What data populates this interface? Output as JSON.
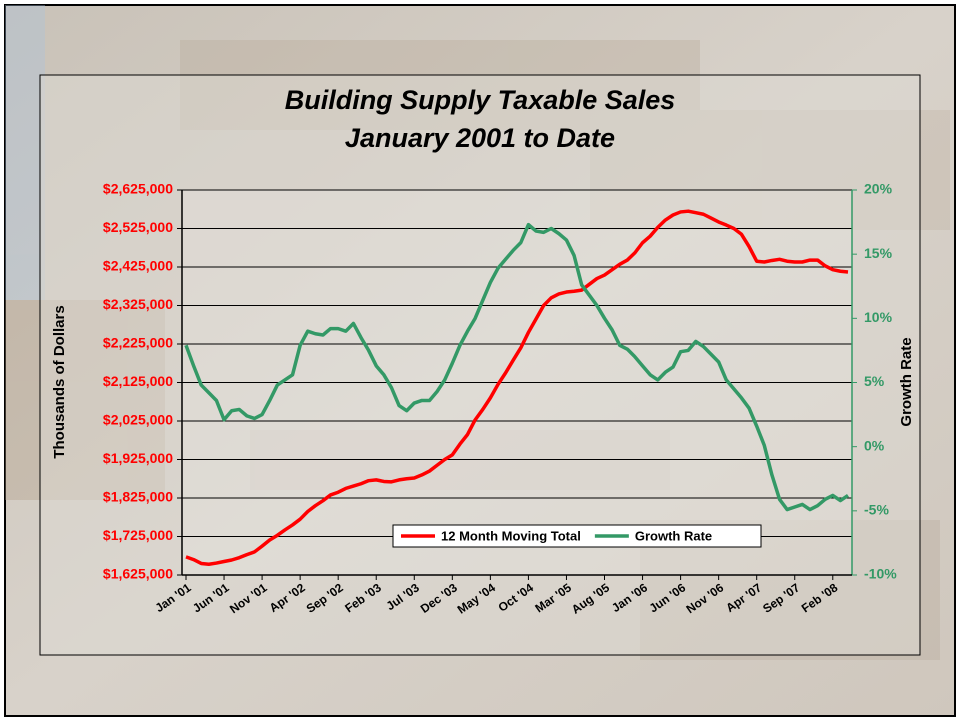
{
  "chart_data": {
    "type": "line",
    "title": [
      "Building Supply Taxable Sales",
      "January 2001 to Date"
    ],
    "ylabel": "Thousands of Dollars",
    "y2label": "Growth Rate",
    "legend": "lower center",
    "grid": true,
    "categories": [
      "Jan '01",
      null,
      null,
      null,
      null,
      "Jun '01",
      null,
      null,
      null,
      null,
      "Nov '01",
      null,
      null,
      null,
      null,
      "Apr '02",
      null,
      null,
      null,
      null,
      "Sep '02",
      null,
      null,
      null,
      null,
      "Feb '03",
      null,
      null,
      null,
      null,
      "Jul '03",
      null,
      null,
      null,
      null,
      "Dec '03",
      null,
      null,
      null,
      null,
      "May '04",
      null,
      null,
      null,
      null,
      "Oct '04",
      null,
      null,
      null,
      null,
      "Mar '05",
      null,
      null,
      null,
      null,
      "Aug '05",
      null,
      null,
      null,
      null,
      "Jan '06",
      null,
      null,
      null,
      null,
      "Jun '06",
      null,
      null,
      null,
      null,
      "Nov '06",
      null,
      null,
      null,
      null,
      "Apr '07",
      null,
      null,
      null,
      null,
      "Sep '07",
      null,
      null,
      null,
      null,
      "Feb '08",
      null,
      null
    ],
    "ylim": [
      1625000,
      2625000
    ],
    "yticks": [
      {
        "value": 1625000,
        "label": "$1,625,000"
      },
      {
        "value": 1725000,
        "label": "$1,725,000"
      },
      {
        "value": 1825000,
        "label": "$1,825,000"
      },
      {
        "value": 1925000,
        "label": "$1,925,000"
      },
      {
        "value": 2025000,
        "label": "$2,025,000"
      },
      {
        "value": 2125000,
        "label": "$2,125,000"
      },
      {
        "value": 2225000,
        "label": "$2,225,000"
      },
      {
        "value": 2325000,
        "label": "$2,325,000"
      },
      {
        "value": 2425000,
        "label": "$2,425,000"
      },
      {
        "value": 2525000,
        "label": "$2,525,000"
      },
      {
        "value": 2625000,
        "label": "$2,625,000"
      }
    ],
    "y2lim": [
      -10,
      20
    ],
    "y2ticks": [
      {
        "value": -10,
        "label": "-10%"
      },
      {
        "value": -5,
        "label": "-5%"
      },
      {
        "value": 0,
        "label": "0%"
      },
      {
        "value": 5,
        "label": "5%"
      },
      {
        "value": 10,
        "label": "10%"
      },
      {
        "value": 15,
        "label": "15%"
      },
      {
        "value": 20,
        "label": "20%"
      }
    ],
    "series": [
      {
        "name": "12 Month Moving Total",
        "color": "#ff0000",
        "values": [
          1672000,
          1665000,
          1655000,
          1653000,
          1656000,
          1660000,
          1664000,
          1670000,
          1678000,
          1685000,
          1700000,
          1716000,
          1728000,
          1742000,
          1755000,
          1770000,
          1790000,
          1805000,
          1818000,
          1833000,
          1840000,
          1850000,
          1856000,
          1862000,
          1870000,
          1872000,
          1868000,
          1867000,
          1872000,
          1875000,
          1877000,
          1885000,
          1895000,
          1910000,
          1925000,
          1937000,
          1965000,
          1990000,
          2028000,
          2055000,
          2085000,
          2120000,
          2150000,
          2183000,
          2215000,
          2255000,
          2290000,
          2325000,
          2345000,
          2355000,
          2360000,
          2362000,
          2365000,
          2380000,
          2395000,
          2404000,
          2418000,
          2432000,
          2443000,
          2462000,
          2488000,
          2505000,
          2528000,
          2547000,
          2560000,
          2568000,
          2570000,
          2566000,
          2562000,
          2552000,
          2542000,
          2534000,
          2525000,
          2510000,
          2478000,
          2440000,
          2438000,
          2442000,
          2445000,
          2440000,
          2438000,
          2438000,
          2443000,
          2443000,
          2428000,
          2418000,
          2414000,
          2412000
        ]
      },
      {
        "name": "Growth Rate",
        "color": "#339966",
        "axis": "y2",
        "values": [
          7.9,
          6.3,
          4.8,
          4.2,
          3.6,
          2.1,
          2.8,
          2.9,
          2.4,
          2.2,
          2.5,
          3.6,
          4.8,
          5.2,
          5.6,
          7.9,
          9.0,
          8.8,
          8.7,
          9.2,
          9.2,
          9.0,
          9.6,
          8.5,
          7.5,
          6.3,
          5.6,
          4.6,
          3.2,
          2.8,
          3.4,
          3.6,
          3.6,
          4.3,
          5.2,
          6.5,
          7.9,
          9.0,
          10.0,
          11.4,
          12.8,
          13.9,
          14.6,
          15.3,
          15.9,
          17.3,
          16.8,
          16.7,
          17.0,
          16.6,
          16.1,
          14.9,
          12.6,
          11.8,
          11.0,
          10.0,
          9.1,
          7.9,
          7.6,
          7.0,
          6.3,
          5.6,
          5.2,
          5.8,
          6.2,
          7.4,
          7.5,
          8.2,
          7.8,
          7.2,
          6.6,
          5.2,
          4.5,
          3.8,
          3.0,
          1.6,
          0.1,
          -2.2,
          -4.1,
          -4.9,
          -4.7,
          -4.5,
          -4.9,
          -4.6,
          -4.1,
          -3.8,
          -4.2,
          -3.8
        ]
      }
    ]
  }
}
